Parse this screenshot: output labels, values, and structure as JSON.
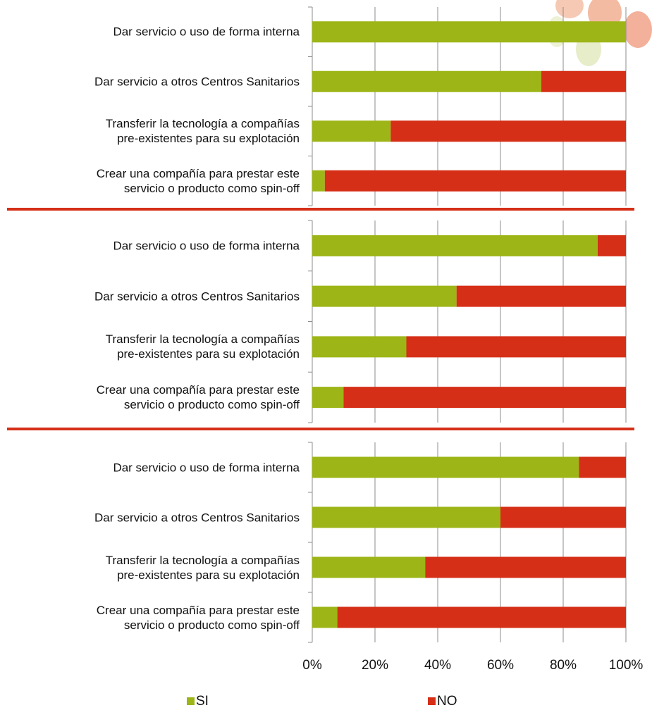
{
  "chart_data": {
    "type": "bar",
    "orientation": "horizontal",
    "stacked": true,
    "grid": true,
    "xlim": [
      0,
      100
    ],
    "xticks": [
      {
        "value": 0,
        "label": "0%"
      },
      {
        "value": 20,
        "label": "20%"
      },
      {
        "value": 40,
        "label": "40%"
      },
      {
        "value": 60,
        "label": "60%"
      },
      {
        "value": 80,
        "label": "80%"
      },
      {
        "value": 100,
        "label": "100%"
      }
    ],
    "series": [
      {
        "name": "SI",
        "color": "#9db517"
      },
      {
        "name": "NO",
        "color": "#d52f17"
      }
    ],
    "panels": [
      {
        "categories": [
          "Dar servicio o uso de forma interna",
          "Dar servicio a otros Centros Sanitarios",
          "Transferir la tecnología a compañías\npre-existentes para su explotación",
          "Crear una compañía para prestar este\nservicio o producto como spin-off"
        ],
        "series": [
          {
            "values": [
              100,
              73,
              25,
              4
            ]
          },
          {
            "values": [
              0,
              27,
              75,
              96
            ]
          }
        ]
      },
      {
        "categories": [
          "Dar servicio o uso de forma interna",
          "Dar servicio a otros Centros Sanitarios",
          "Transferir la tecnología a compañías\npre-existentes para su explotación",
          "Crear una compañía para prestar este\nservicio o producto como spin-off"
        ],
        "series": [
          {
            "values": [
              91,
              46,
              30,
              10
            ]
          },
          {
            "values": [
              9,
              54,
              70,
              90
            ]
          }
        ]
      },
      {
        "categories": [
          "Dar servicio o uso de forma interna",
          "Dar servicio a otros Centros Sanitarios",
          "Transferir la tecnología a compañías\npre-existentes para su explotación",
          "Crear una compañía para prestar este\nservicio o producto como spin-off"
        ],
        "series": [
          {
            "values": [
              85,
              60,
              36,
              8
            ]
          },
          {
            "values": [
              15,
              40,
              64,
              92
            ]
          }
        ]
      }
    ]
  }
}
